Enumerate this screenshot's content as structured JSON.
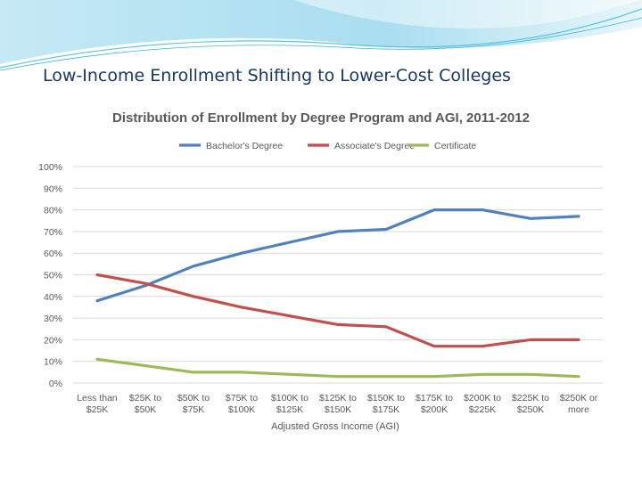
{
  "slide": {
    "title": "Low-Income Enrollment Shifting to Lower-Cost Colleges"
  },
  "colors": {
    "banner_light": "#d4eef7",
    "banner_mid": "#8fd3ea",
    "banner_dark": "#3cb4d8"
  },
  "chart_data": {
    "type": "line",
    "title": "Distribution of Enrollment by Degree Program and AGI, 2011-2012",
    "xlabel": "Adjusted Gross Income (AGI)",
    "ylabel": "",
    "ylim": [
      0,
      100
    ],
    "yticks": [
      "0%",
      "10%",
      "20%",
      "30%",
      "40%",
      "50%",
      "60%",
      "70%",
      "80%",
      "90%",
      "100%"
    ],
    "categories": [
      [
        "Less than",
        "$25K"
      ],
      [
        "$25K to",
        "$50K"
      ],
      [
        "$50K to",
        "$75K"
      ],
      [
        "$75K to",
        "$100K"
      ],
      [
        "$100K to",
        "$125K"
      ],
      [
        "$125K to",
        "$150K"
      ],
      [
        "$150K to",
        "$175K"
      ],
      [
        "$175K to",
        "$200K"
      ],
      [
        "$200K to",
        "$225K"
      ],
      [
        "$225K to",
        "$250K"
      ],
      [
        "$250K or",
        "more"
      ]
    ],
    "grid": true,
    "legend_position": "top",
    "series": [
      {
        "name": "Bachelor's Degree",
        "color": "#4f81bd",
        "values": [
          38,
          45,
          54,
          60,
          65,
          70,
          71,
          80,
          80,
          76,
          77
        ]
      },
      {
        "name": "Associate's Degree",
        "color": "#c0504d",
        "values": [
          50,
          46,
          40,
          35,
          31,
          27,
          26,
          17,
          17,
          20,
          20
        ]
      },
      {
        "name": "Certificate",
        "color": "#9bbb59",
        "values": [
          11,
          8,
          5,
          5,
          4,
          3,
          3,
          3,
          4,
          4,
          3
        ]
      }
    ]
  }
}
